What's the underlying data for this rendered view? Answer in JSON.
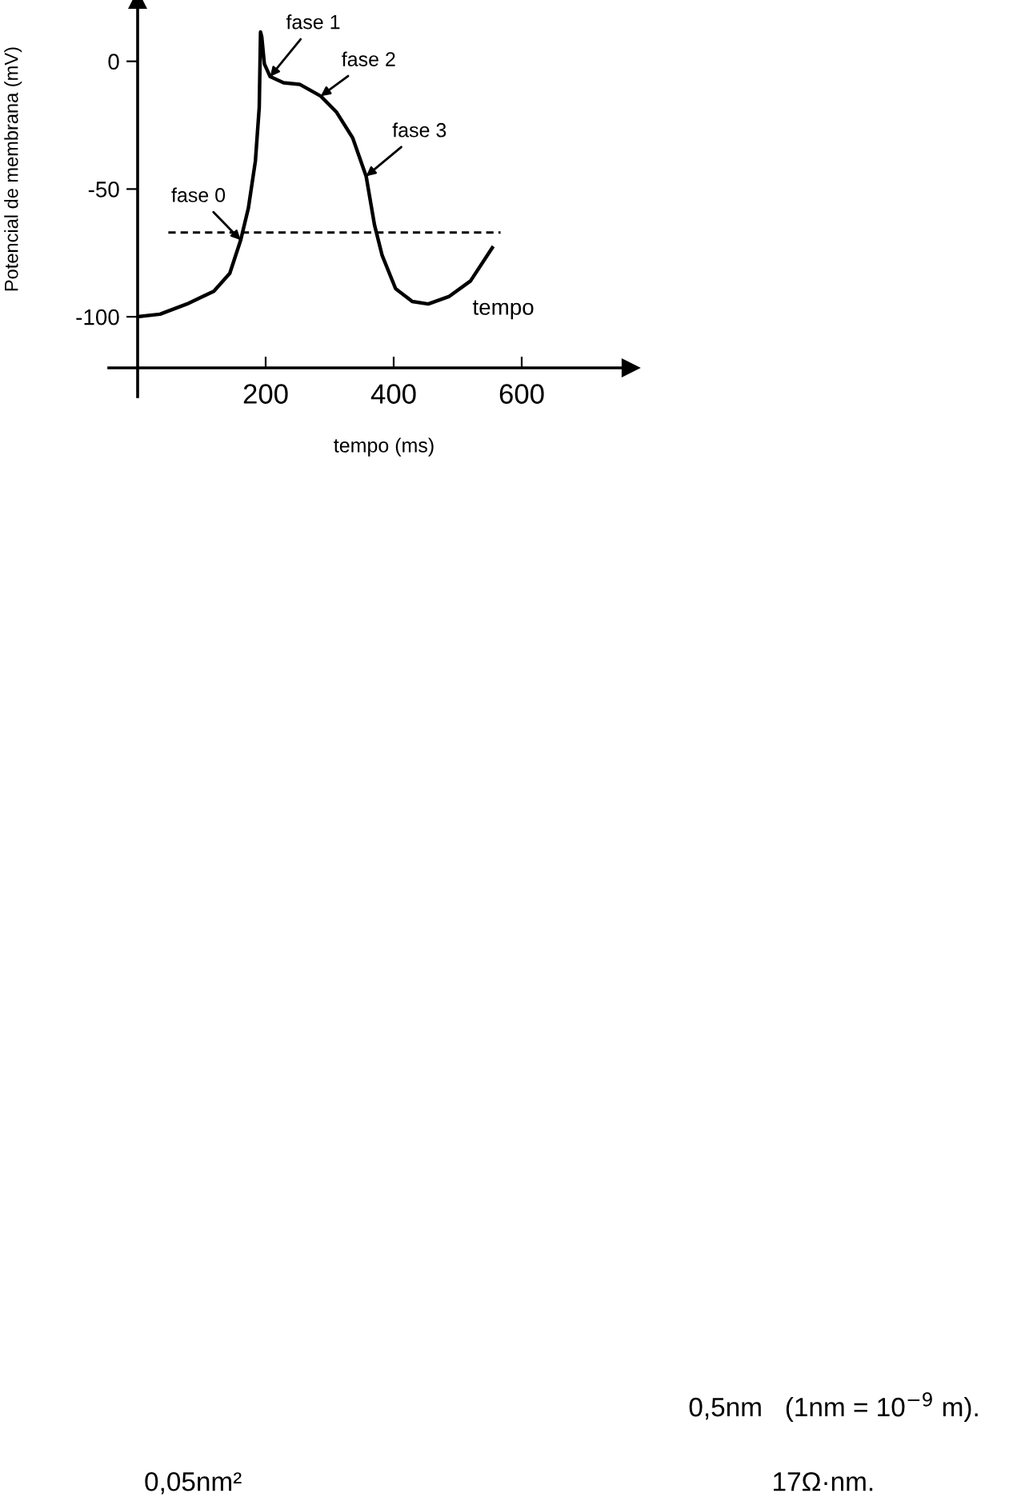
{
  "chart_data": {
    "type": "line",
    "xlabel": "tempo (ms)",
    "ylabel": "Potencial de membrana (mV)",
    "xlim": [
      0,
      770
    ],
    "ylim": [
      -120,
      24
    ],
    "xticks": [
      200,
      400,
      600
    ],
    "yticks": [
      0,
      {
        "value": -50,
        "label": "-50"
      },
      {
        "value": -100,
        "label": "-100"
      }
    ],
    "grid": false,
    "marker": "none",
    "series": [
      {
        "color": "#000000",
        "line_style": "solid",
        "x": [
          0,
          35,
          77,
          119,
          144,
          161,
          173,
          184,
          190,
          192,
          194,
          198,
          207,
          228,
          253,
          286,
          311,
          336,
          357,
          370,
          382,
          403,
          429,
          454,
          487,
          520,
          554
        ],
        "values": [
          -100,
          -99,
          -95,
          -90,
          -83,
          -70,
          -57.5,
          -39,
          -18,
          11.5,
          9.4,
          -1,
          -6,
          -8.4,
          -9,
          -13.6,
          -20,
          -30,
          -45,
          -64,
          -76,
          -89,
          -94,
          -95,
          -92,
          -86,
          -73
        ]
      },
      {
        "color": "#000000",
        "line_style": "dashed",
        "x": [
          48,
          567
        ],
        "values": [
          -67,
          -67
        ]
      }
    ],
    "annotations": [
      {
        "text": "fase 0",
        "x": 161,
        "y": -70
      },
      {
        "text": "fase 1",
        "x": 207,
        "y": -6
      },
      {
        "text": "fase 2",
        "x": 286,
        "y": -13.6
      },
      {
        "text": "fase 3",
        "x": 357,
        "y": -45
      },
      "tempo",
      "0,5nm   (1nm = 10$^{−9}$ m).",
      "0,05nm²",
      "17Ω·nm."
    ]
  }
}
